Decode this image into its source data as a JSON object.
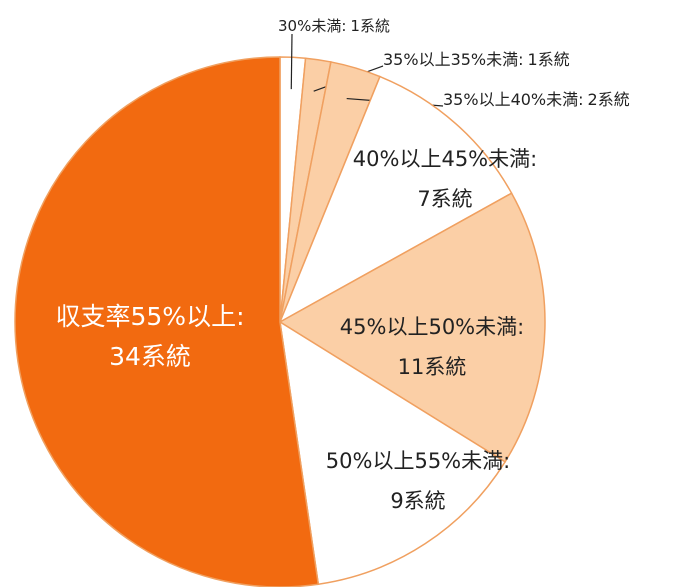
{
  "chart_data": {
    "type": "pie",
    "categories": [
      "30%未満:",
      "35%以上35%未満:",
      "35%以上40%未満:",
      "40%以上45%未満:",
      "45%以上50%未満:",
      "50%以上55%未満:",
      "収支率55%以上:"
    ],
    "values": [
      1,
      1,
      2,
      7,
      11,
      9,
      34
    ],
    "value_labels": [
      "1系統",
      "1系統",
      "2系統",
      "7系統",
      "11系統",
      "9系統",
      "34系統"
    ],
    "colors": [
      "#ffffff",
      "#fbcfa6",
      "#fbcfa6",
      "#ffffff",
      "#fbcfa6",
      "#ffffff",
      "#f26a10"
    ]
  }
}
